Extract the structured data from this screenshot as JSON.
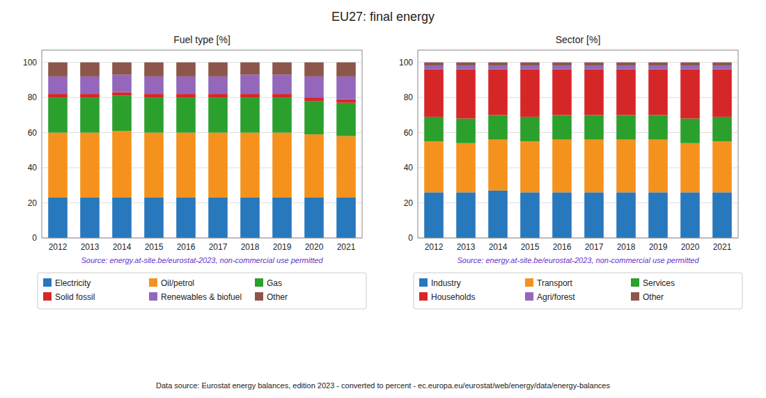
{
  "title": "EU27: final energy",
  "annotations": [
    "Data source: Eurostat energy balances, edition 2023 - converted to percent - ec.europa.eu/eurostat/web/energy/data/energy-balances"
  ],
  "chart_data": [
    {
      "type": "bar",
      "stacked": true,
      "grid": true,
      "legend": "bottom",
      "title": "Fuel type [%]",
      "annotations": [
        "Source: energy.at-site.be/eurostat-2023, non-commercial use permitted"
      ],
      "categories": [
        "2012",
        "2013",
        "2014",
        "2015",
        "2016",
        "2017",
        "2018",
        "2019",
        "2020",
        "2021"
      ],
      "series": [
        {
          "name": "Electricity",
          "color": "#2878bd",
          "values": [
            23,
            23,
            23,
            23,
            23,
            23,
            23,
            23,
            23,
            23
          ]
        },
        {
          "name": "Oil/petrol",
          "color": "#f5921e",
          "values": [
            37,
            37,
            38,
            37,
            37,
            37,
            37,
            37,
            36,
            35
          ]
        },
        {
          "name": "Gas",
          "color": "#2ca02c",
          "values": [
            20,
            20,
            20,
            20,
            20,
            20,
            20,
            20,
            19,
            19
          ]
        },
        {
          "name": "Solid fossil",
          "color": "#d62728",
          "values": [
            2,
            2,
            2,
            2,
            2,
            2,
            2,
            2,
            2,
            2
          ]
        },
        {
          "name": "Renewables & biofuel",
          "color": "#9467bd",
          "values": [
            10,
            10,
            10,
            10,
            10,
            10,
            11,
            11,
            12,
            13
          ]
        },
        {
          "name": "Other",
          "color": "#8c564b",
          "values": [
            8,
            8,
            7,
            8,
            8,
            8,
            7,
            7,
            8,
            8
          ]
        }
      ],
      "ylim": [
        0,
        107
      ],
      "yticks": [
        0,
        20,
        40,
        60,
        80,
        100
      ]
    },
    {
      "type": "bar",
      "stacked": true,
      "grid": true,
      "legend": "bottom",
      "title": "Sector [%]",
      "annotations": [
        "Source: energy.at-site.be/eurostat-2023, non-commercial use permitted"
      ],
      "categories": [
        "2012",
        "2013",
        "2014",
        "2015",
        "2016",
        "2017",
        "2018",
        "2019",
        "2020",
        "2021"
      ],
      "series": [
        {
          "name": "Industry",
          "color": "#2878bd",
          "values": [
            26,
            26,
            27,
            26,
            26,
            26,
            26,
            26,
            26,
            26
          ]
        },
        {
          "name": "Transport",
          "color": "#f5921e",
          "values": [
            29,
            28,
            29,
            29,
            30,
            30,
            30,
            30,
            28,
            29
          ]
        },
        {
          "name": "Services",
          "color": "#2ca02c",
          "values": [
            14,
            14,
            14,
            14,
            14,
            14,
            14,
            14,
            14,
            14
          ]
        },
        {
          "name": "Households",
          "color": "#d62728",
          "values": [
            27,
            28,
            26,
            27,
            26,
            26,
            26,
            26,
            28,
            27
          ]
        },
        {
          "name": "Agri/forest",
          "color": "#9467bd",
          "values": [
            2,
            2,
            2,
            2,
            2,
            2,
            2,
            2,
            2,
            2
          ]
        },
        {
          "name": "Other",
          "color": "#8c564b",
          "values": [
            2,
            2,
            2,
            2,
            2,
            2,
            2,
            2,
            2,
            2
          ]
        }
      ],
      "ylim": [
        0,
        107
      ],
      "yticks": [
        0,
        20,
        40,
        60,
        80,
        100
      ]
    }
  ]
}
